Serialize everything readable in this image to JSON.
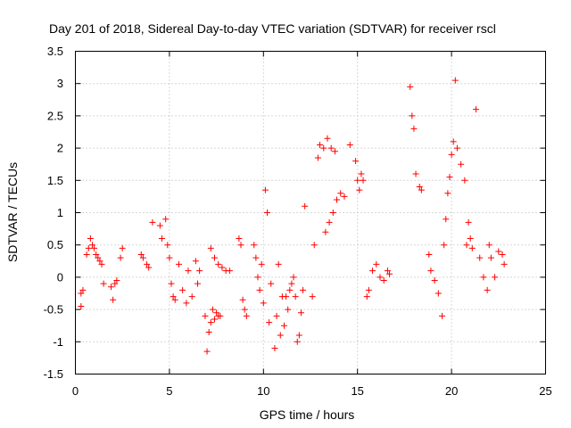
{
  "chart_data": {
    "type": "scatter",
    "title": "Day 201 of 2018, Sidereal Day-to-day VTEC variation (SDTVAR) for receiver rscl",
    "xlabel": "GPS time / hours",
    "ylabel": "SDTVAR / TECUs",
    "xlim": [
      0,
      25
    ],
    "ylim": [
      -1.5,
      3.5
    ],
    "xticks": [
      "0",
      "5",
      "10",
      "15",
      "20",
      "25"
    ],
    "yticks": [
      "-1.5",
      "-1",
      "-0.5",
      "0",
      "0.5",
      "1",
      "1.5",
      "2",
      "2.5",
      "3",
      "3.5"
    ],
    "grid": true,
    "marker": "plus",
    "color": "#ff0000",
    "series": [
      {
        "name": "SDTVAR",
        "x": [
          0.3,
          0.3,
          0.4,
          0.6,
          0.7,
          0.8,
          0.9,
          1.0,
          1.1,
          1.2,
          1.3,
          1.4,
          1.5,
          1.9,
          2.0,
          2.1,
          2.2,
          2.4,
          2.5,
          3.5,
          3.6,
          3.8,
          3.9,
          4.1,
          4.5,
          4.6,
          4.8,
          4.9,
          5.0,
          5.1,
          5.2,
          5.3,
          5.5,
          5.7,
          5.9,
          6.0,
          6.2,
          6.4,
          6.5,
          6.6,
          6.9,
          7.0,
          7.1,
          7.2,
          7.3,
          7.4,
          7.5,
          7.6,
          7.7,
          7.2,
          7.4,
          7.6,
          7.8,
          8.0,
          8.2,
          8.7,
          8.8,
          8.9,
          9.0,
          9.1,
          9.5,
          9.6,
          9.7,
          9.8,
          9.9,
          10.0,
          10.1,
          10.2,
          10.3,
          10.4,
          10.6,
          10.7,
          10.8,
          10.9,
          11.0,
          11.1,
          11.2,
          11.3,
          11.4,
          11.5,
          11.6,
          11.7,
          11.8,
          11.9,
          12.0,
          12.1,
          12.2,
          12.6,
          12.7,
          12.9,
          13.0,
          13.2,
          13.4,
          13.6,
          13.8,
          13.3,
          13.5,
          13.7,
          13.9,
          14.1,
          14.3,
          14.6,
          14.9,
          15.0,
          15.1,
          15.2,
          15.3,
          15.5,
          15.6,
          15.8,
          16.0,
          16.2,
          16.4,
          16.6,
          16.7,
          17.8,
          17.9,
          18.0,
          18.1,
          18.3,
          18.4,
          18.8,
          18.9,
          19.1,
          19.3,
          19.5,
          19.6,
          19.7,
          19.8,
          19.9,
          20.0,
          20.1,
          20.2,
          20.3,
          20.5,
          20.7,
          20.8,
          20.9,
          21.0,
          21.1,
          21.3,
          21.5,
          21.7,
          21.9,
          22.0,
          22.1,
          22.3,
          22.5,
          22.7,
          22.8
        ],
        "y": [
          -0.25,
          -0.45,
          -0.2,
          0.35,
          0.45,
          0.6,
          0.5,
          0.45,
          0.35,
          0.3,
          0.25,
          0.2,
          -0.1,
          -0.15,
          -0.35,
          -0.1,
          -0.05,
          0.3,
          0.45,
          0.35,
          0.3,
          0.2,
          0.15,
          0.85,
          0.8,
          0.6,
          0.9,
          0.5,
          0.3,
          -0.1,
          -0.3,
          -0.35,
          0.2,
          -0.2,
          -0.4,
          0.1,
          -0.3,
          0.25,
          -0.1,
          0.1,
          -0.6,
          -1.15,
          -0.85,
          -0.7,
          -0.5,
          -0.65,
          -0.55,
          -0.6,
          -0.6,
          0.45,
          0.3,
          0.2,
          0.15,
          0.1,
          0.1,
          0.6,
          0.5,
          -0.35,
          -0.5,
          -0.6,
          0.5,
          0.3,
          0.0,
          -0.2,
          0.2,
          -0.4,
          1.35,
          1.0,
          -0.7,
          -0.1,
          -1.1,
          -0.6,
          0.2,
          -0.9,
          -0.3,
          -0.75,
          -0.3,
          -0.5,
          -0.2,
          -0.1,
          0.0,
          -0.3,
          -1.0,
          -0.9,
          -0.55,
          -0.2,
          1.1,
          -0.3,
          0.5,
          1.85,
          2.05,
          2.0,
          2.15,
          2.0,
          1.95,
          0.7,
          0.85,
          1.0,
          1.2,
          1.3,
          1.25,
          2.05,
          1.8,
          1.5,
          1.35,
          1.6,
          1.5,
          -0.3,
          -0.2,
          0.1,
          0.2,
          0.0,
          -0.05,
          0.1,
          0.05,
          2.95,
          2.5,
          2.3,
          1.6,
          1.4,
          1.35,
          0.35,
          0.1,
          -0.05,
          -0.25,
          -0.6,
          0.5,
          0.9,
          1.3,
          1.55,
          1.9,
          2.1,
          3.05,
          2.0,
          1.75,
          1.5,
          0.5,
          0.85,
          0.6,
          0.45,
          2.6,
          0.3,
          0.0,
          -0.2,
          0.5,
          0.3,
          0.0,
          0.4,
          0.35,
          0.2
        ]
      }
    ]
  }
}
